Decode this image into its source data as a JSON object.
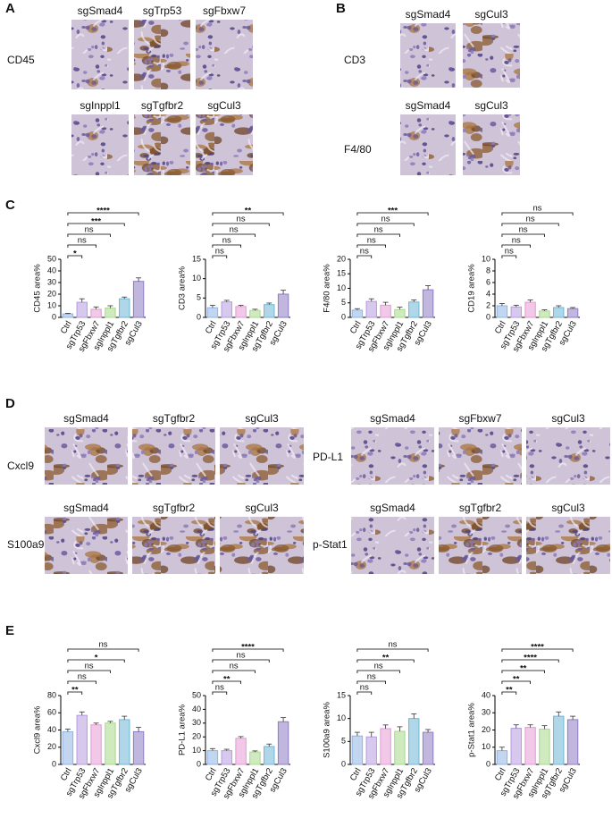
{
  "panels": [
    {
      "letter": "A",
      "stains": [
        "CD45"
      ],
      "images": [
        "sgSmad4",
        "sgTrp53",
        "sgFbxw7",
        "sgInppl1",
        "sgTgfbr2",
        "sgCul3"
      ]
    },
    {
      "letter": "B",
      "stains": [
        "CD3",
        "F4/80"
      ],
      "images": [
        "sgSmad4",
        "sgCul3",
        "sgSmad4",
        "sgCul3"
      ]
    },
    {
      "letter": "C"
    },
    {
      "letter": "D",
      "stains": [
        "Cxcl9",
        "S100a9",
        "PD-L1",
        "p-Stat1"
      ],
      "images": [
        "sgSmad4",
        "sgTgfbr2",
        "sgCul3",
        "sgSmad4",
        "sgTgfbr2",
        "sgCul3",
        "sgSmad4",
        "sgFbxw7",
        "sgCul3",
        "sgSmad4",
        "sgTgfbr2",
        "sgCul3"
      ]
    },
    {
      "letter": "E"
    }
  ],
  "chart_data": [
    {
      "type": "bar",
      "y_label": "CD45 area%",
      "categories": [
        "Ctrl",
        "sgTrp53",
        "sgFbxw7",
        "sgInppl1",
        "sgTgfbr2",
        "sgCul3"
      ],
      "values": [
        3,
        13,
        7,
        8,
        16,
        31
      ],
      "errors": [
        0.5,
        3,
        2,
        2,
        1.5,
        3
      ],
      "colors": [
        "#8fb4e3",
        "#b79be0",
        "#e59ad4",
        "#a9d98a",
        "#6fb6d6",
        "#8e7cc3"
      ],
      "significance": [
        null,
        "*",
        "ns",
        "ns",
        "***",
        "****"
      ],
      "ylim": [
        0,
        50
      ],
      "yticks": [
        0,
        10,
        20,
        30,
        40,
        50
      ]
    },
    {
      "type": "bar",
      "y_label": "CD3 area%",
      "categories": [
        "Ctrl",
        "sgTrp53",
        "sgFbxw7",
        "sgInppl1",
        "sgTgfbr2",
        "sgCul3"
      ],
      "values": [
        2.5,
        4,
        2.8,
        1.8,
        3.3,
        6
      ],
      "errors": [
        0.6,
        0.4,
        0.3,
        0.3,
        0.4,
        1
      ],
      "colors": [
        "#8fb4e3",
        "#b79be0",
        "#e59ad4",
        "#a9d98a",
        "#6fb6d6",
        "#8e7cc3"
      ],
      "significance": [
        null,
        "ns",
        "ns",
        "ns",
        "ns",
        "**"
      ],
      "ylim": [
        0,
        15
      ],
      "yticks": [
        0,
        5,
        10,
        15
      ]
    },
    {
      "type": "bar",
      "y_label": "F4/80 area%",
      "categories": [
        "Ctrl",
        "sgTrp53",
        "sgFbxw7",
        "sgInppl1",
        "sgTgfbr2",
        "sgCul3"
      ],
      "values": [
        2.5,
        5.5,
        4.2,
        2.7,
        5.3,
        9.5
      ],
      "errors": [
        0.5,
        0.9,
        1,
        0.8,
        0.7,
        1.4
      ],
      "colors": [
        "#8fb4e3",
        "#b79be0",
        "#e59ad4",
        "#a9d98a",
        "#6fb6d6",
        "#8e7cc3"
      ],
      "significance": [
        null,
        "ns",
        "ns",
        "ns",
        "ns",
        "***"
      ],
      "ylim": [
        0,
        20
      ],
      "yticks": [
        0,
        5,
        10,
        15,
        20
      ]
    },
    {
      "type": "bar",
      "y_label": "CD19 area%",
      "categories": [
        "Ctrl",
        "sgTrp53",
        "sgFbxw7",
        "sgInppl1",
        "sgTgfbr2",
        "sgCul3"
      ],
      "values": [
        2,
        1.8,
        2.6,
        1.1,
        1.7,
        1.5
      ],
      "errors": [
        0.4,
        0.3,
        0.4,
        0.2,
        0.3,
        0.2
      ],
      "colors": [
        "#8fb4e3",
        "#b79be0",
        "#e59ad4",
        "#a9d98a",
        "#6fb6d6",
        "#8e7cc3"
      ],
      "significance": [
        null,
        "ns",
        "ns",
        "ns",
        "ns",
        "ns"
      ],
      "ylim": [
        0,
        10
      ],
      "yticks": [
        0,
        2,
        4,
        6,
        8,
        10
      ]
    },
    {
      "type": "bar",
      "y_label": "Cxcl9 area%",
      "categories": [
        "Ctrl",
        "sgTrp53",
        "sgFbxw7",
        "sgInppl1",
        "sgTgfbr2",
        "sgCul3"
      ],
      "values": [
        38,
        57,
        46,
        48,
        52,
        38
      ],
      "errors": [
        3,
        4,
        2,
        2,
        4,
        5
      ],
      "colors": [
        "#8fb4e3",
        "#b79be0",
        "#e59ad4",
        "#a9d98a",
        "#6fb6d6",
        "#8e7cc3"
      ],
      "significance": [
        null,
        "**",
        "ns",
        "ns",
        "*",
        "ns"
      ],
      "ylim": [
        0,
        80
      ],
      "yticks": [
        0,
        20,
        40,
        60,
        80
      ]
    },
    {
      "type": "bar",
      "y_label": "PD-L1 area%",
      "categories": [
        "Ctrl",
        "sgTrp53",
        "sgFbxw7",
        "sgInppl1",
        "sgTgfbr2",
        "sgCul3"
      ],
      "values": [
        10,
        10,
        19,
        9,
        13,
        31
      ],
      "errors": [
        1.5,
        1,
        1.2,
        0.8,
        1.8,
        3
      ],
      "colors": [
        "#8fb4e3",
        "#b79be0",
        "#e59ad4",
        "#a9d98a",
        "#6fb6d6",
        "#8e7cc3"
      ],
      "significance": [
        null,
        "ns",
        "**",
        "ns",
        "ns",
        "****"
      ],
      "ylim": [
        0,
        50
      ],
      "yticks": [
        0,
        10,
        20,
        30,
        40,
        50
      ]
    },
    {
      "type": "bar",
      "y_label": "S100a9 area%",
      "categories": [
        "Ctrl",
        "sgTrp53",
        "sgFbxw7",
        "sgInppl1",
        "sgTgfbr2",
        "sgCul3"
      ],
      "values": [
        6.2,
        6,
        7.8,
        7.2,
        10,
        7
      ],
      "errors": [
        0.8,
        1,
        0.8,
        1,
        1,
        0.6
      ],
      "colors": [
        "#8fb4e3",
        "#b79be0",
        "#e59ad4",
        "#a9d98a",
        "#6fb6d6",
        "#8e7cc3"
      ],
      "significance": [
        null,
        "ns",
        "ns",
        "ns",
        "**",
        "ns"
      ],
      "ylim": [
        0,
        15
      ],
      "yticks": [
        0,
        5,
        10,
        15
      ]
    },
    {
      "type": "bar",
      "y_label": "p-Stat1 area%",
      "categories": [
        "Ctrl",
        "sgTrp53",
        "sgFbxw7",
        "sgInppl1",
        "sgTgfbr2",
        "sgCul3"
      ],
      "values": [
        8,
        21,
        21.5,
        20.5,
        28,
        26
      ],
      "errors": [
        2,
        2,
        1.5,
        2,
        2.5,
        2
      ],
      "colors": [
        "#8fb4e3",
        "#b79be0",
        "#e59ad4",
        "#a9d98a",
        "#6fb6d6",
        "#8e7cc3"
      ],
      "significance": [
        null,
        "**",
        "**",
        "**",
        "****",
        "****"
      ],
      "ylim": [
        0,
        40
      ],
      "yticks": [
        0,
        10,
        20,
        30,
        40
      ]
    }
  ]
}
